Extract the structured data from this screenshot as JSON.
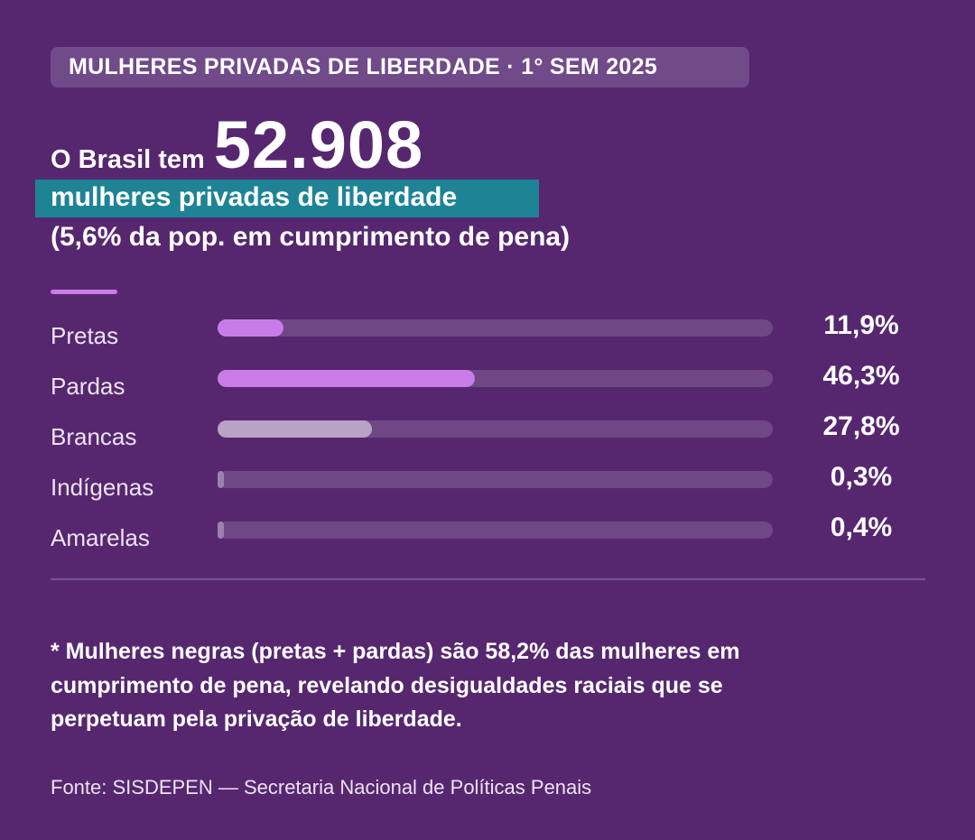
{
  "header": {
    "tag": "MULHERES PRIVADAS DE LIBERDADE · 1° SEM 2025"
  },
  "headline": {
    "lead": "O Brasil tem",
    "number": "52.908",
    "highlight": "mulheres privadas de liberdade",
    "subtitle": "(5,6% da pop. em cumprimento de pena)"
  },
  "chart_data": {
    "type": "bar",
    "orientation": "horizontal",
    "xlim": [
      0,
      100
    ],
    "categories": [
      "Pretas",
      "Pardas",
      "Brancas",
      "Indígenas",
      "Amarelas"
    ],
    "values": [
      11.9,
      46.3,
      27.8,
      0.3,
      0.4
    ],
    "value_labels": [
      "11,9%",
      "46,3%",
      "27,8%",
      "0,3%",
      "0,4%"
    ],
    "colors": [
      "#C97CE8",
      "#C97CE8",
      "#B9A3C5",
      "#9E80AE",
      "#9E80AE"
    ],
    "track_color": "#6F4785"
  },
  "footnote": "* Mulheres negras (pretas + pardas) são 58,2% das mulheres em cumprimento de pena, revelando desigualdades raciais que se perpetuam pela privação de liberdade.",
  "source": "Fonte: SISDEPEN — Secretaria Nacional de Políticas Penais",
  "colors": {
    "background": "#56276F",
    "highlight": "#1F8396",
    "accent": "#C97CE8"
  }
}
